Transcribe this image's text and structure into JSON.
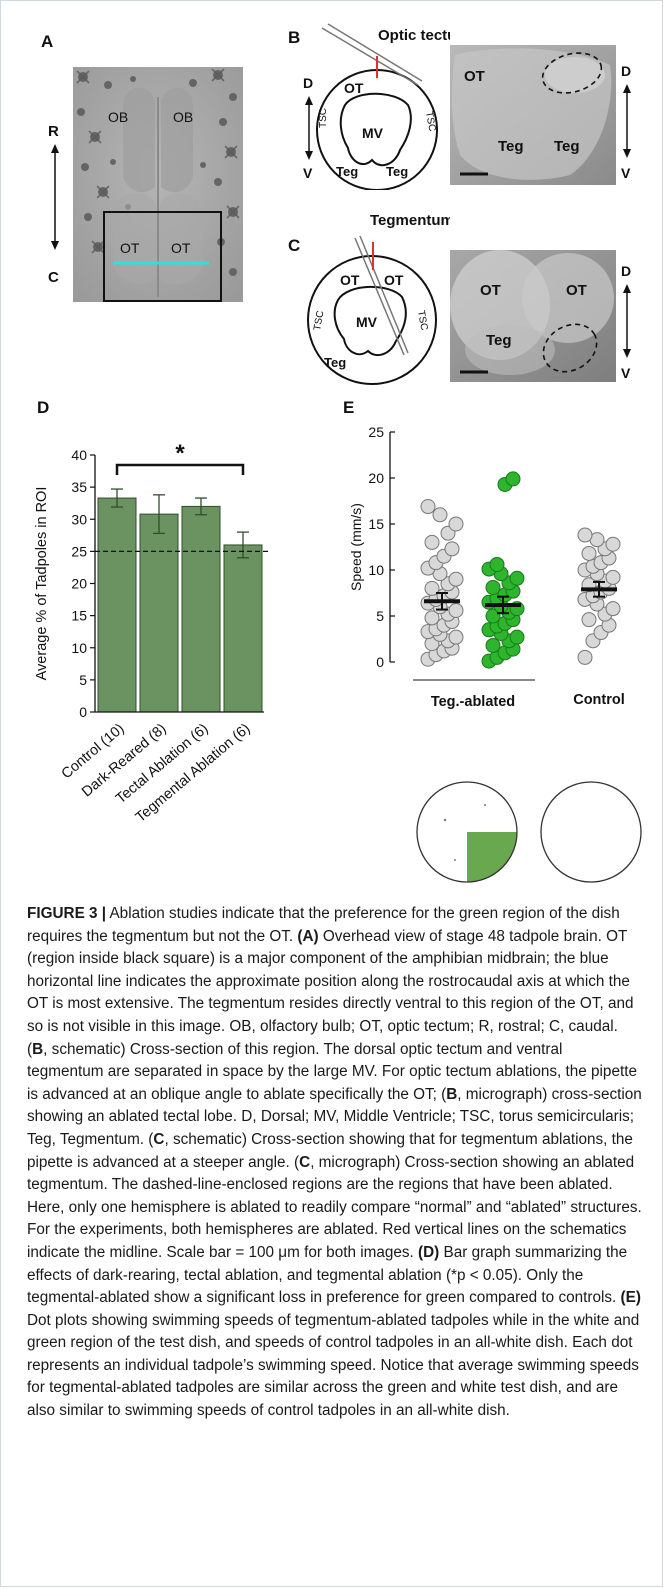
{
  "panels": {
    "a": "A",
    "b": "B",
    "c": "C",
    "d": "D",
    "e": "E"
  },
  "panel_a": {
    "ob_left": "OB",
    "ob_right": "OB",
    "ot_left": "OT",
    "ot_right": "OT",
    "axis_top": "R",
    "axis_bottom": "C"
  },
  "panel_b": {
    "title": "Optic tectum (OT) Ablation",
    "schematic": {
      "ot": "OT",
      "mv": "MV",
      "tsc_left": "TSC",
      "tsc_right": "TSC",
      "teg_left": "Teg",
      "teg_right": "Teg",
      "axis_top": "D",
      "axis_bottom": "V"
    },
    "micrograph": {
      "ot": "OT",
      "teg_left": "Teg",
      "teg_right": "Teg",
      "axis_top": "D",
      "axis_bottom": "V"
    }
  },
  "panel_c": {
    "title": "Tegmentum (Teg) Ablation",
    "schematic": {
      "ot_left": "OT",
      "ot_right": "OT",
      "mv": "MV",
      "tsc_left": "TSC",
      "tsc_right": "TSC",
      "teg": "Teg"
    },
    "micrograph": {
      "ot_left": "OT",
      "ot_right": "OT",
      "teg": "Teg",
      "axis_top": "D",
      "axis_bottom": "V"
    }
  },
  "chart_data": [
    {
      "type": "bar",
      "ylabel": "Average % of Tadpoles in ROI",
      "categories": [
        "Control (10)",
        "Dark-Reared (8)",
        "Tectal Ablation (6)",
        "Tegmental Ablation (6)"
      ],
      "values": [
        33.3,
        30.8,
        32.0,
        26.0
      ],
      "errors": [
        1.4,
        3.0,
        1.3,
        2.0
      ],
      "ylim": [
        0,
        40
      ],
      "yticks": [
        0,
        5,
        10,
        15,
        20,
        25,
        30,
        35,
        40
      ],
      "reference_line": 25,
      "significance": "*",
      "bar_color": "#6b9362"
    },
    {
      "type": "scatter",
      "ylabel": "Speed (mm/s)",
      "ylim": [
        0,
        25
      ],
      "yticks": [
        0,
        5,
        10,
        15,
        20,
        25
      ],
      "group_labels": [
        "Teg.-ablated",
        "Control"
      ],
      "series": [
        {
          "group": "Teg.-ablated",
          "color": "#d8d8d8",
          "mean": 6.6,
          "sem": 0.9,
          "values": [
            0.3,
            0.8,
            1.2,
            1.5,
            2.0,
            2.3,
            2.7,
            3.0,
            3.3,
            3.6,
            4.0,
            4.4,
            4.8,
            5.2,
            5.6,
            6.0,
            6.4,
            6.8,
            7.2,
            7.6,
            8.0,
            8.5,
            9.0,
            9.6,
            10.2,
            10.8,
            11.5,
            12.3,
            13.0,
            14.0,
            15.0,
            16.0,
            16.9
          ]
        },
        {
          "group": "Teg.-ablated",
          "color": "#2db52d",
          "mean": 6.2,
          "sem": 0.9,
          "values": [
            0.1,
            0.5,
            1.0,
            1.4,
            1.8,
            2.3,
            2.7,
            3.1,
            3.5,
            3.9,
            4.2,
            4.6,
            5.0,
            5.4,
            5.8,
            6.1,
            6.5,
            6.9,
            7.3,
            7.7,
            8.1,
            8.6,
            9.1,
            9.6,
            10.1,
            10.6,
            19.3,
            19.9
          ]
        },
        {
          "group": "Control",
          "color": "#d8d8d8",
          "mean": 7.9,
          "sem": 0.8,
          "values": [
            0.5,
            2.3,
            3.2,
            4.0,
            4.6,
            5.2,
            5.8,
            6.3,
            6.8,
            7.2,
            7.6,
            8.0,
            8.4,
            8.8,
            9.2,
            9.6,
            10.0,
            10.4,
            10.8,
            11.3,
            11.8,
            12.3,
            12.8,
            13.3,
            13.8
          ]
        }
      ]
    }
  ],
  "caption": {
    "label": "FIGURE 3 |",
    "text_1": " Ablation studies indicate that the preference for the green region of the dish requires the tegmentum but not the OT. ",
    "a": "(A)",
    "text_2": " Overhead view of stage 48 tadpole brain. OT (region inside black square) is a major component of the amphibian midbrain; the blue horizontal line indicates the approximate position along the rostrocaudal axis at which the OT is most extensive. The tegmentum resides directly ventral to this region of the OT, and so is not visible in this image. OB, olfactory bulb; OT, optic tectum; R, rostral; C, caudal. (",
    "b1": "B",
    "text_3": ", schematic) Cross-section of this region. The dorsal optic tectum and ventral tegmentum are separated in space by the large MV. For optic tectum ablations, the pipette is advanced at an oblique angle to ablate specifically the OT; (",
    "b2": "B",
    "text_4": ", micrograph) cross-section showing an ablated tectal lobe. D, Dorsal; MV, Middle Ventricle; TSC, torus semicircularis; Teg, Tegmentum. (",
    "c1": "C",
    "text_5": ", schematic) Cross-section showing that for tegmentum ablations, the pipette is advanced at a steeper angle. (",
    "c2": "C",
    "text_6": ", micrograph) Cross-section showing an ablated tegmentum. The dashed-line-enclosed regions are the regions that have been ablated. Here, only one hemisphere is ablated to readily compare “normal” and “ablated” structures. For the experiments, both hemispheres are ablated. Red vertical lines on the schematics indicate the midline. Scale bar = 100 μm for both images. ",
    "d": "(D)",
    "text_7": " Bar graph summarizing the effects of dark-rearing, tectal ablation, and tegmental ablation (*p < 0.05). Only the tegmental-ablated show a significant loss in preference for green compared to controls. ",
    "e": "(E)",
    "text_8": " Dot plots showing swimming speeds of tegmentum-ablated tadpoles while in the white and green region of the test dish, and speeds of control tadpoles in an all-white dish. Each dot represents an individual tadpole’s swimming speed. Notice that average swimming speeds for tegmental-ablated tadpoles are similar across the green and white test dish, and are also similar to swimming speeds of control tadpoles in an all-white dish."
  }
}
